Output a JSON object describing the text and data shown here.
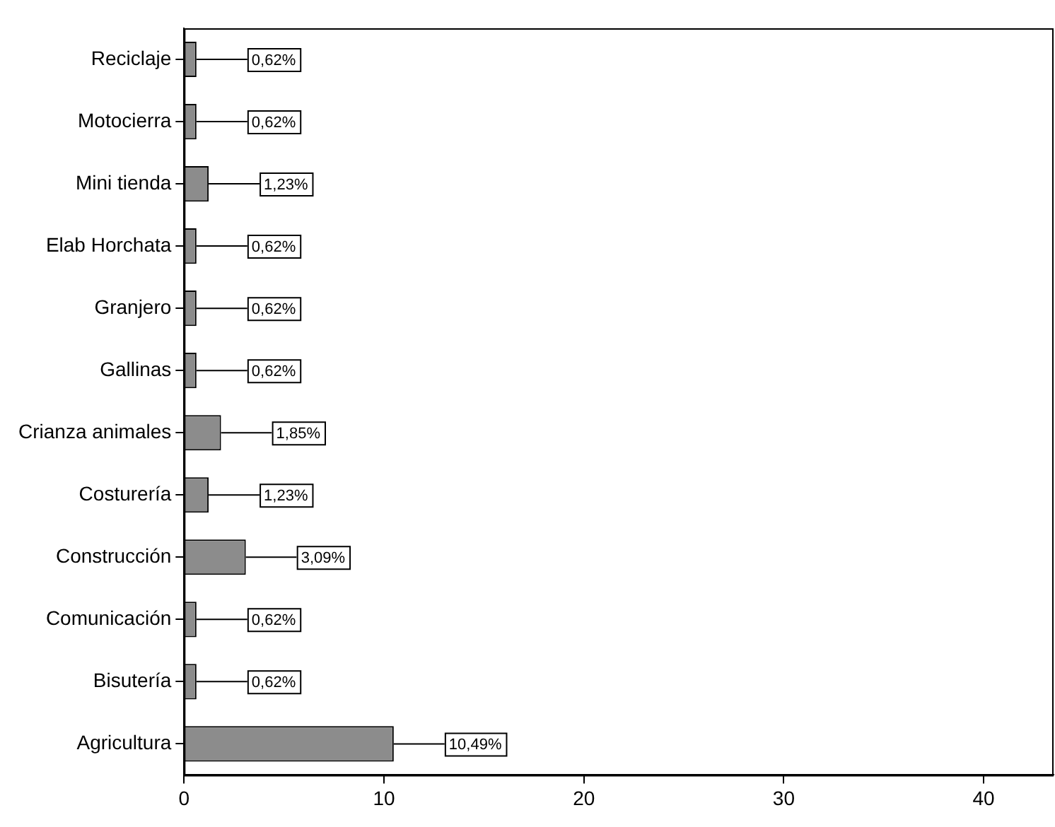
{
  "chart_data": {
    "type": "bar",
    "orientation": "horizontal",
    "categories": [
      "Reciclaje",
      "Motocierra",
      "Mini tienda",
      "Elab Horchata",
      "Granjero",
      "Gallinas",
      "Crianza animales",
      "Costurería",
      "Construcción",
      "Comunicación",
      "Bisutería",
      "Agricultura"
    ],
    "values": [
      0.62,
      0.62,
      1.23,
      0.62,
      0.62,
      0.62,
      1.85,
      1.23,
      3.09,
      0.62,
      0.62,
      10.49
    ],
    "value_labels": [
      "0,62%",
      "0,62%",
      "1,23%",
      "0,62%",
      "0,62%",
      "0,62%",
      "1,85%",
      "1,23%",
      "3,09%",
      "0,62%",
      "0,62%",
      "10,49%"
    ],
    "color": "#8c8c8c",
    "xlim": [
      0,
      43.5
    ],
    "xticks": [
      0,
      10,
      20,
      30,
      40
    ],
    "grid": false,
    "legend": false
  }
}
